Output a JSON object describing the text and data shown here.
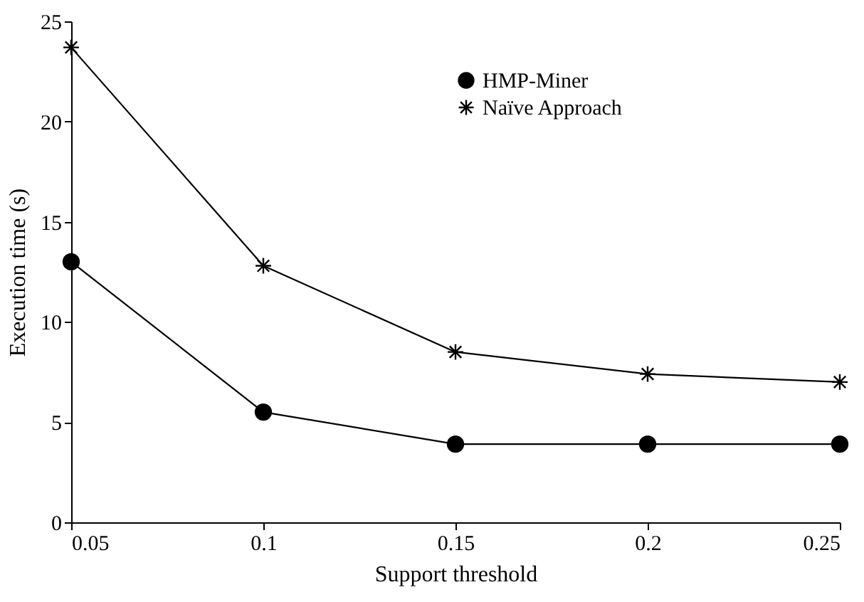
{
  "chart_data": {
    "type": "line",
    "xlabel": "Support threshold",
    "ylabel": "Execution time (s)",
    "x": [
      0.05,
      0.1,
      0.15,
      0.2,
      0.25
    ],
    "series": [
      {
        "name": "HMP-Miner",
        "color": "#000000",
        "marker": "circle",
        "values": [
          13,
          5.5,
          3.9,
          3.9,
          3.9
        ]
      },
      {
        "name": "Naïve Approach",
        "color": "#000000",
        "marker": "cross",
        "values": [
          23.7,
          12.8,
          8.5,
          7.4,
          7.0
        ]
      }
    ],
    "xlim": [
      0.05,
      0.25
    ],
    "xticks": [
      0.05,
      0.1,
      0.15,
      0.2,
      0.25
    ],
    "ylim": [
      0,
      25
    ],
    "yticks": [
      0,
      5,
      10,
      15,
      20,
      25
    ],
    "legend": "top right",
    "line_style": "solid"
  }
}
